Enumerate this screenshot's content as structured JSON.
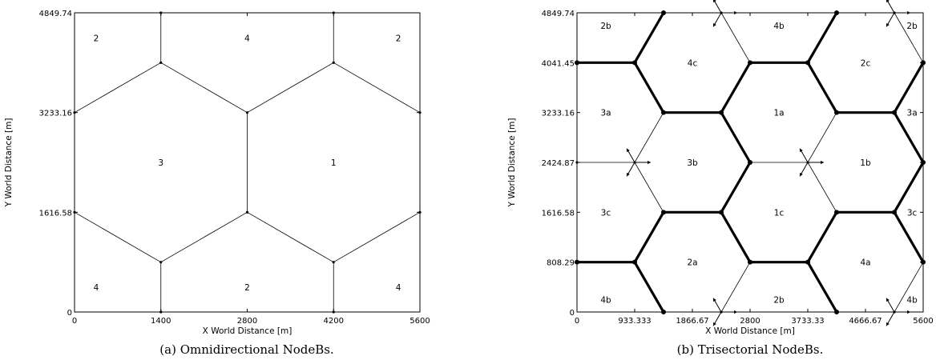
{
  "chart_data": [
    {
      "type": "diagram",
      "title": "",
      "caption": "(a) Omnidirectional NodeBs.",
      "xlabel": "X World Distance [m]",
      "ylabel": "Y World Distance [m]",
      "xlim": [
        0,
        5600
      ],
      "ylim": [
        0,
        4849.74
      ],
      "x_ticks": [
        0,
        1400,
        2800,
        4200,
        5600
      ],
      "x_tick_labels": [
        "0",
        "1400",
        "2800",
        "4200",
        "5600"
      ],
      "y_ticks": [
        0,
        1616.58,
        3233.16,
        4849.74
      ],
      "y_tick_labels": [
        "0",
        "1616.58",
        "3233.16",
        "4849.74"
      ],
      "thin_segments": [
        [
          [
            1400,
            4849.74
          ],
          [
            1400,
            4041.45
          ]
        ],
        [
          [
            4200,
            4849.74
          ],
          [
            4200,
            4041.45
          ]
        ],
        [
          [
            0,
            3233.16
          ],
          [
            1400,
            4041.45
          ]
        ],
        [
          [
            1400,
            4041.45
          ],
          [
            2800,
            3233.16
          ]
        ],
        [
          [
            2800,
            3233.16
          ],
          [
            4200,
            4041.45
          ]
        ],
        [
          [
            4200,
            4041.45
          ],
          [
            5600,
            3233.16
          ]
        ],
        [
          [
            2800,
            3233.16
          ],
          [
            2800,
            1616.58
          ]
        ],
        [
          [
            0,
            1616.58
          ],
          [
            1400,
            808.29
          ]
        ],
        [
          [
            1400,
            808.29
          ],
          [
            2800,
            1616.58
          ]
        ],
        [
          [
            2800,
            1616.58
          ],
          [
            4200,
            808.29
          ]
        ],
        [
          [
            4200,
            808.29
          ],
          [
            5600,
            1616.58
          ]
        ],
        [
          [
            1400,
            808.29
          ],
          [
            1400,
            0
          ]
        ],
        [
          [
            4200,
            808.29
          ],
          [
            4200,
            0
          ]
        ]
      ],
      "thick_segments": [],
      "arrows": [],
      "cell_labels": [
        {
          "text": "2",
          "x": 350,
          "y": 4440
        },
        {
          "text": "4",
          "x": 2800,
          "y": 4440
        },
        {
          "text": "2",
          "x": 5250,
          "y": 4440
        },
        {
          "text": "3",
          "x": 1400,
          "y": 2424.87
        },
        {
          "text": "1",
          "x": 4200,
          "y": 2424.87
        },
        {
          "text": "4",
          "x": 350,
          "y": 400
        },
        {
          "text": "2",
          "x": 2800,
          "y": 400
        },
        {
          "text": "4",
          "x": 5250,
          "y": 400
        }
      ]
    },
    {
      "type": "diagram",
      "title": "",
      "caption": "(b) Trisectorial NodeBs.",
      "xlabel": "X World Distance [m]",
      "ylabel": "Y World Distance [m]",
      "xlim": [
        0,
        5600
      ],
      "ylim": [
        0,
        4849.74
      ],
      "x_ticks": [
        0,
        933.333,
        1866.67,
        2800,
        3733.33,
        4666.67,
        5600
      ],
      "x_tick_labels": [
        "0",
        "933.333",
        "1866.67",
        "2800",
        "3733.33",
        "4666.67",
        "5600"
      ],
      "y_ticks": [
        0,
        808.29,
        1616.58,
        2424.87,
        3233.16,
        4041.45,
        4849.74
      ],
      "y_tick_labels": [
        "0",
        "808.29",
        "1616.58",
        "2424.87",
        "3233.16",
        "4041.45",
        "4849.74"
      ],
      "thin_segments": [
        [
          [
            2333.33,
            4849.74
          ],
          [
            2800,
            4041.45
          ]
        ],
        [
          [
            5133.33,
            4849.74
          ],
          [
            5600,
            4041.45
          ]
        ],
        [
          [
            1400,
            3233.16
          ],
          [
            933.333,
            2424.87
          ]
        ],
        [
          [
            933.333,
            2424.87
          ],
          [
            1400,
            1616.58
          ]
        ],
        [
          [
            4200,
            3233.16
          ],
          [
            3733.33,
            2424.87
          ]
        ],
        [
          [
            3733.33,
            2424.87
          ],
          [
            4200,
            1616.58
          ]
        ],
        [
          [
            0,
            2424.87
          ],
          [
            933.333,
            2424.87
          ]
        ],
        [
          [
            2800,
            2424.87
          ],
          [
            3733.33,
            2424.87
          ]
        ],
        [
          [
            2800,
            808.29
          ],
          [
            2333.33,
            0
          ]
        ],
        [
          [
            5600,
            808.29
          ],
          [
            5133.33,
            0
          ]
        ]
      ],
      "thick_segments": [
        [
          [
            0,
            4041.45
          ],
          [
            933.333,
            4041.45
          ]
        ],
        [
          [
            933.333,
            4041.45
          ],
          [
            1400,
            4849.74
          ]
        ],
        [
          [
            933.333,
            4041.45
          ],
          [
            1400,
            3233.16
          ]
        ],
        [
          [
            1400,
            3233.16
          ],
          [
            2333.33,
            3233.16
          ]
        ],
        [
          [
            2333.33,
            3233.16
          ],
          [
            2800,
            4041.45
          ]
        ],
        [
          [
            2800,
            4041.45
          ],
          [
            3733.33,
            4041.45
          ]
        ],
        [
          [
            3733.33,
            4041.45
          ],
          [
            4200,
            4849.74
          ]
        ],
        [
          [
            3733.33,
            4041.45
          ],
          [
            4200,
            3233.16
          ]
        ],
        [
          [
            4200,
            3233.16
          ],
          [
            5133.33,
            3233.16
          ]
        ],
        [
          [
            5133.33,
            3233.16
          ],
          [
            5600,
            4041.45
          ]
        ],
        [
          [
            2333.33,
            3233.16
          ],
          [
            2800,
            2424.87
          ]
        ],
        [
          [
            5133.33,
            3233.16
          ],
          [
            5600,
            2424.87
          ]
        ],
        [
          [
            2800,
            2424.87
          ],
          [
            2333.33,
            1616.58
          ]
        ],
        [
          [
            5600,
            2424.87
          ],
          [
            5133.33,
            1616.58
          ]
        ],
        [
          [
            1400,
            1616.58
          ],
          [
            2333.33,
            1616.58
          ]
        ],
        [
          [
            4200,
            1616.58
          ],
          [
            5133.33,
            1616.58
          ]
        ],
        [
          [
            1400,
            1616.58
          ],
          [
            933.333,
            808.29
          ]
        ],
        [
          [
            2333.33,
            1616.58
          ],
          [
            2800,
            808.29
          ]
        ],
        [
          [
            4200,
            1616.58
          ],
          [
            3733.33,
            808.29
          ]
        ],
        [
          [
            5133.33,
            1616.58
          ],
          [
            5600,
            808.29
          ]
        ],
        [
          [
            0,
            808.29
          ],
          [
            933.333,
            808.29
          ]
        ],
        [
          [
            2800,
            808.29
          ],
          [
            3733.33,
            808.29
          ]
        ],
        [
          [
            933.333,
            808.29
          ],
          [
            1400,
            0
          ]
        ],
        [
          [
            3733.33,
            808.29
          ],
          [
            4200,
            0
          ]
        ]
      ],
      "arrows": [
        {
          "x": 933.333,
          "y": 2424.87
        },
        {
          "x": 3733.33,
          "y": 2424.87
        },
        {
          "x": 2333.33,
          "y": 4849.74
        },
        {
          "x": 5133.33,
          "y": 4849.74
        },
        {
          "x": 2333.33,
          "y": 0
        },
        {
          "x": 5133.33,
          "y": 0
        }
      ],
      "cell_labels": [
        {
          "text": "2b",
          "x": 466.667,
          "y": 4640
        },
        {
          "text": "4b",
          "x": 3266.67,
          "y": 4640
        },
        {
          "text": "2b",
          "x": 5420,
          "y": 4640
        },
        {
          "text": "4c",
          "x": 1866.67,
          "y": 4041.45
        },
        {
          "text": "2c",
          "x": 4666.67,
          "y": 4041.45
        },
        {
          "text": "3a",
          "x": 466.667,
          "y": 3233.16
        },
        {
          "text": "1a",
          "x": 3266.67,
          "y": 3233.16
        },
        {
          "text": "3a",
          "x": 5420,
          "y": 3233.16
        },
        {
          "text": "3b",
          "x": 1866.67,
          "y": 2424.87
        },
        {
          "text": "1b",
          "x": 4666.67,
          "y": 2424.87
        },
        {
          "text": "3c",
          "x": 466.667,
          "y": 1616.58
        },
        {
          "text": "1c",
          "x": 3266.67,
          "y": 1616.58
        },
        {
          "text": "3c",
          "x": 5420,
          "y": 1616.58
        },
        {
          "text": "2a",
          "x": 1866.67,
          "y": 808.29
        },
        {
          "text": "4a",
          "x": 4666.67,
          "y": 808.29
        },
        {
          "text": "4b",
          "x": 466.667,
          "y": 200
        },
        {
          "text": "2b",
          "x": 3266.67,
          "y": 200
        },
        {
          "text": "4b",
          "x": 5420,
          "y": 200
        }
      ]
    }
  ]
}
